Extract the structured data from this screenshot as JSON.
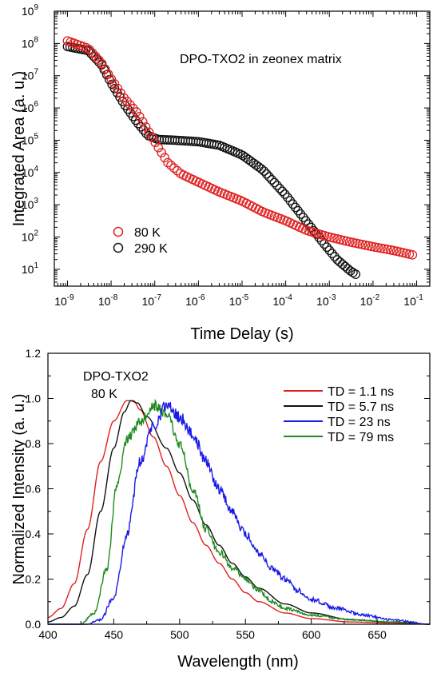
{
  "chart_data": [
    {
      "type": "scatter",
      "title": "",
      "annotation": "DPO-TXO2 in zeonex matrix",
      "xlabel": "Time Delay (s)",
      "ylabel": "Integrated Area (a. u.)",
      "xscale": "log",
      "yscale": "log",
      "xlim": [
        5e-10,
        0.2
      ],
      "ylim": [
        3,
        1000000000.0
      ],
      "xticks": [
        {
          "base": "10",
          "exp": "-9",
          "value": 1e-09
        },
        {
          "base": "10",
          "exp": "-8",
          "value": 1e-08
        },
        {
          "base": "10",
          "exp": "-7",
          "value": 1e-07
        },
        {
          "base": "10",
          "exp": "-6",
          "value": 1e-06
        },
        {
          "base": "10",
          "exp": "-5",
          "value": 1e-05
        },
        {
          "base": "10",
          "exp": "-4",
          "value": 0.0001
        },
        {
          "base": "10",
          "exp": "-3",
          "value": 0.001
        },
        {
          "base": "10",
          "exp": "-2",
          "value": 0.01
        },
        {
          "base": "10",
          "exp": "-1",
          "value": 0.1
        }
      ],
      "yticks": [
        {
          "base": "10",
          "exp": "1",
          "value": 10.0
        },
        {
          "base": "10",
          "exp": "2",
          "value": 100.0
        },
        {
          "base": "10",
          "exp": "3",
          "value": 1000.0
        },
        {
          "base": "10",
          "exp": "4",
          "value": 10000.0
        },
        {
          "base": "10",
          "exp": "5",
          "value": 100000.0
        },
        {
          "base": "10",
          "exp": "6",
          "value": 1000000.0
        },
        {
          "base": "10",
          "exp": "7",
          "value": 10000000.0
        },
        {
          "base": "10",
          "exp": "8",
          "value": 100000000.0
        },
        {
          "base": "10",
          "exp": "9",
          "value": 1000000000.0
        }
      ],
      "legend": "bottom-left",
      "grid": false,
      "series": [
        {
          "name": "80 K",
          "color": "#e02020",
          "marker": "open-circle",
          "anchors": [
            [
              1e-09,
              120000000.0
            ],
            [
              3e-09,
              70000000.0
            ],
            [
              6e-09,
              25000000.0
            ],
            [
              1e-08,
              8000000.0
            ],
            [
              2e-08,
              2000000.0
            ],
            [
              4e-08,
              700000.0
            ],
            [
              7e-08,
              200000.0
            ],
            [
              1.2e-07,
              60000.0
            ],
            [
              2e-07,
              20000.0
            ],
            [
              4e-07,
              9000.0
            ],
            [
              1e-06,
              5000.0
            ],
            [
              3e-06,
              2500.0
            ],
            [
              1e-05,
              1300.0
            ],
            [
              3e-05,
              600.0
            ],
            [
              0.0001,
              320.0
            ],
            [
              0.0003,
              160.0
            ],
            [
              0.001,
              100.0
            ],
            [
              0.003,
              70.0
            ],
            [
              0.01,
              50.0
            ],
            [
              0.03,
              38.0
            ],
            [
              0.08,
              28.0
            ]
          ]
        },
        {
          "name": "290 K",
          "color": "#111111",
          "marker": "open-circle",
          "anchors": [
            [
              1e-09,
              80000000.0
            ],
            [
              3e-09,
              60000000.0
            ],
            [
              6e-09,
              22000000.0
            ],
            [
              1e-08,
              6000000.0
            ],
            [
              2e-08,
              1300000.0
            ],
            [
              4e-08,
              350000.0
            ],
            [
              7e-08,
              140000.0
            ],
            [
              1.2e-07,
              105000.0
            ],
            [
              3e-07,
              100000.0
            ],
            [
              1e-06,
              90000.0
            ],
            [
              3e-06,
              70000.0
            ],
            [
              1e-05,
              35000.0
            ],
            [
              3e-05,
              12000.0
            ],
            [
              0.0001,
              2000.0
            ],
            [
              0.0003,
              300.0
            ],
            [
              0.0007,
              70.0
            ],
            [
              0.0015,
              20.0
            ],
            [
              0.003,
              9.0
            ],
            [
              0.004,
              7.0
            ]
          ]
        }
      ]
    },
    {
      "type": "line",
      "title": "",
      "annotation": [
        "DPO-TXO2",
        "80 K"
      ],
      "xlabel": "Wavelength (nm)",
      "ylabel": "Normalized Intensity (a. u.)",
      "xlim": [
        400,
        690
      ],
      "ylim": [
        0.0,
        1.2
      ],
      "xticks": [
        400,
        450,
        500,
        550,
        600,
        650
      ],
      "yticks": [
        "0.0",
        "0.2",
        "0.4",
        "0.6",
        "0.8",
        "1.0",
        "1.2"
      ],
      "legend": "top-right",
      "grid": false,
      "series": [
        {
          "name": "TD = 1.1 ns",
          "color": "#e02020",
          "noise": 0.0,
          "anchors": [
            [
              400,
              0.03
            ],
            [
              410,
              0.07
            ],
            [
              420,
              0.18
            ],
            [
              430,
              0.42
            ],
            [
              440,
              0.72
            ],
            [
              450,
              0.9
            ],
            [
              460,
              0.99
            ],
            [
              465,
              0.99
            ],
            [
              470,
              0.95
            ],
            [
              480,
              0.83
            ],
            [
              490,
              0.7
            ],
            [
              500,
              0.57
            ],
            [
              510,
              0.45
            ],
            [
              520,
              0.35
            ],
            [
              530,
              0.27
            ],
            [
              540,
              0.2
            ],
            [
              550,
              0.14
            ],
            [
              560,
              0.1
            ],
            [
              580,
              0.05
            ],
            [
              600,
              0.025
            ],
            [
              630,
              0.01
            ],
            [
              660,
              0.005
            ],
            [
              690,
              0.0
            ]
          ]
        },
        {
          "name": "TD = 5.7 ns",
          "color": "#111111",
          "noise": 0.0,
          "anchors": [
            [
              400,
              0.01
            ],
            [
              410,
              0.03
            ],
            [
              420,
              0.08
            ],
            [
              430,
              0.22
            ],
            [
              440,
              0.5
            ],
            [
              450,
              0.78
            ],
            [
              458,
              0.94
            ],
            [
              463,
              0.99
            ],
            [
              468,
              0.98
            ],
            [
              475,
              0.92
            ],
            [
              490,
              0.78
            ],
            [
              500,
              0.67
            ],
            [
              510,
              0.55
            ],
            [
              520,
              0.44
            ],
            [
              530,
              0.35
            ],
            [
              540,
              0.27
            ],
            [
              550,
              0.21
            ],
            [
              560,
              0.16
            ],
            [
              580,
              0.09
            ],
            [
              600,
              0.05
            ],
            [
              630,
              0.02
            ],
            [
              660,
              0.01
            ],
            [
              690,
              0.0
            ]
          ]
        },
        {
          "name": "TD = 23 ns",
          "color": "#1a1ae6",
          "noise": 0.03,
          "anchors": [
            [
              400,
              0.0
            ],
            [
              430,
              0.0
            ],
            [
              440,
              0.02
            ],
            [
              450,
              0.12
            ],
            [
              460,
              0.4
            ],
            [
              470,
              0.72
            ],
            [
              480,
              0.88
            ],
            [
              490,
              0.97
            ],
            [
              500,
              0.92
            ],
            [
              510,
              0.84
            ],
            [
              520,
              0.72
            ],
            [
              530,
              0.6
            ],
            [
              540,
              0.5
            ],
            [
              550,
              0.4
            ],
            [
              560,
              0.32
            ],
            [
              570,
              0.25
            ],
            [
              580,
              0.2
            ],
            [
              590,
              0.15
            ],
            [
              600,
              0.11
            ],
            [
              620,
              0.07
            ],
            [
              640,
              0.04
            ],
            [
              660,
              0.02
            ],
            [
              690,
              0.0
            ]
          ]
        },
        {
          "name": "TD = 79 ms",
          "color": "#1f8a1f",
          "noise": 0.025,
          "anchors": [
            [
              400,
              0.0
            ],
            [
              425,
              0.0
            ],
            [
              435,
              0.05
            ],
            [
              445,
              0.25
            ],
            [
              452,
              0.6
            ],
            [
              460,
              0.82
            ],
            [
              470,
              0.9
            ],
            [
              480,
              0.97
            ],
            [
              490,
              0.93
            ],
            [
              500,
              0.8
            ],
            [
              510,
              0.6
            ],
            [
              520,
              0.42
            ],
            [
              530,
              0.32
            ],
            [
              540,
              0.25
            ],
            [
              550,
              0.2
            ],
            [
              560,
              0.15
            ],
            [
              570,
              0.1
            ],
            [
              580,
              0.07
            ],
            [
              600,
              0.04
            ],
            [
              630,
              0.02
            ],
            [
              660,
              0.01
            ],
            [
              690,
              0.0
            ]
          ]
        }
      ]
    }
  ]
}
